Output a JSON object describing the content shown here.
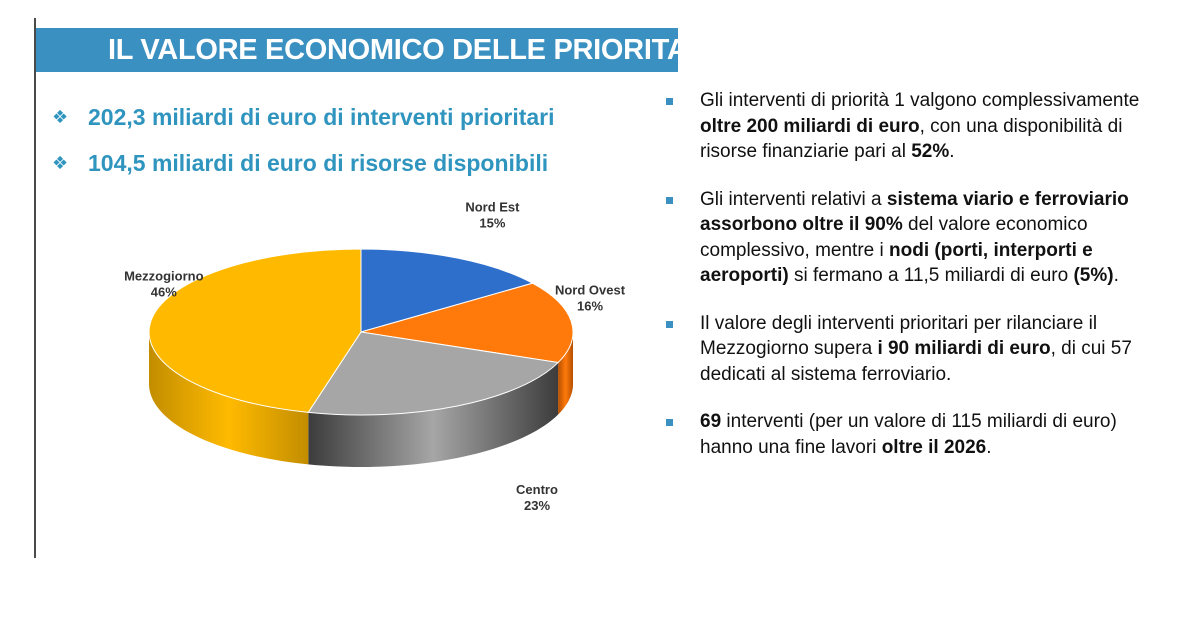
{
  "header": {
    "title": "IL VALORE ECONOMICO DELLE PRIORITA’"
  },
  "kpis": [
    {
      "bullet": "❖",
      "text": "202,3 miliardi di euro di interventi prioritari"
    },
    {
      "bullet": "❖",
      "text": "104,5 miliardi di euro di risorse disponibili"
    }
  ],
  "chart_data": {
    "type": "pie",
    "style": "3d",
    "categories": [
      "Nord Est",
      "Nord Ovest",
      "Centro",
      "Mezzogiorno"
    ],
    "values": [
      15,
      16,
      23,
      46
    ],
    "labels": [
      "15%",
      "16%",
      "23%",
      "46%"
    ],
    "colors": [
      "#2f6fcc",
      "#ff7a0a",
      "#a6a6a6",
      "#ffba00"
    ],
    "side_colors": [
      "#1d4b8f",
      "#b54f00",
      "#3c3c3c",
      "#c28d00"
    ]
  },
  "bullets": [
    [
      {
        "t": "Gli interventi di priorità 1 valgono complessivamente ",
        "b": false
      },
      {
        "t": "oltre 200 miliardi di euro",
        "b": true
      },
      {
        "t": ", con una disponibilità di risorse finanziarie pari al ",
        "b": false
      },
      {
        "t": "52%",
        "b": true
      },
      {
        "t": ".",
        "b": false
      }
    ],
    [
      {
        "t": "Gli interventi relativi a ",
        "b": false
      },
      {
        "t": "sistema viario e ferroviario assorbono oltre il 90%",
        "b": true
      },
      {
        "t": " del valore economico complessivo, mentre i ",
        "b": false
      },
      {
        "t": "nodi (porti, interporti e aeroporti)",
        "b": true
      },
      {
        "t": " si fermano a 11,5 miliardi di euro ",
        "b": false
      },
      {
        "t": "(5%)",
        "b": true
      },
      {
        "t": ".",
        "b": false
      }
    ],
    [
      {
        "t": "Il valore degli interventi prioritari per rilanciare il Mezzogiorno supera ",
        "b": false
      },
      {
        "t": "i 90 miliardi di euro",
        "b": true
      },
      {
        "t": ", di cui 57 dedicati al sistema ferroviario.",
        "b": false
      }
    ],
    [
      {
        "t": "69",
        "b": true
      },
      {
        "t": " interventi (per un valore di 115 miliardi di euro) hanno una fine lavori ",
        "b": false
      },
      {
        "t": "oltre il 2026",
        "b": true
      },
      {
        "t": ".",
        "b": false
      }
    ]
  ]
}
